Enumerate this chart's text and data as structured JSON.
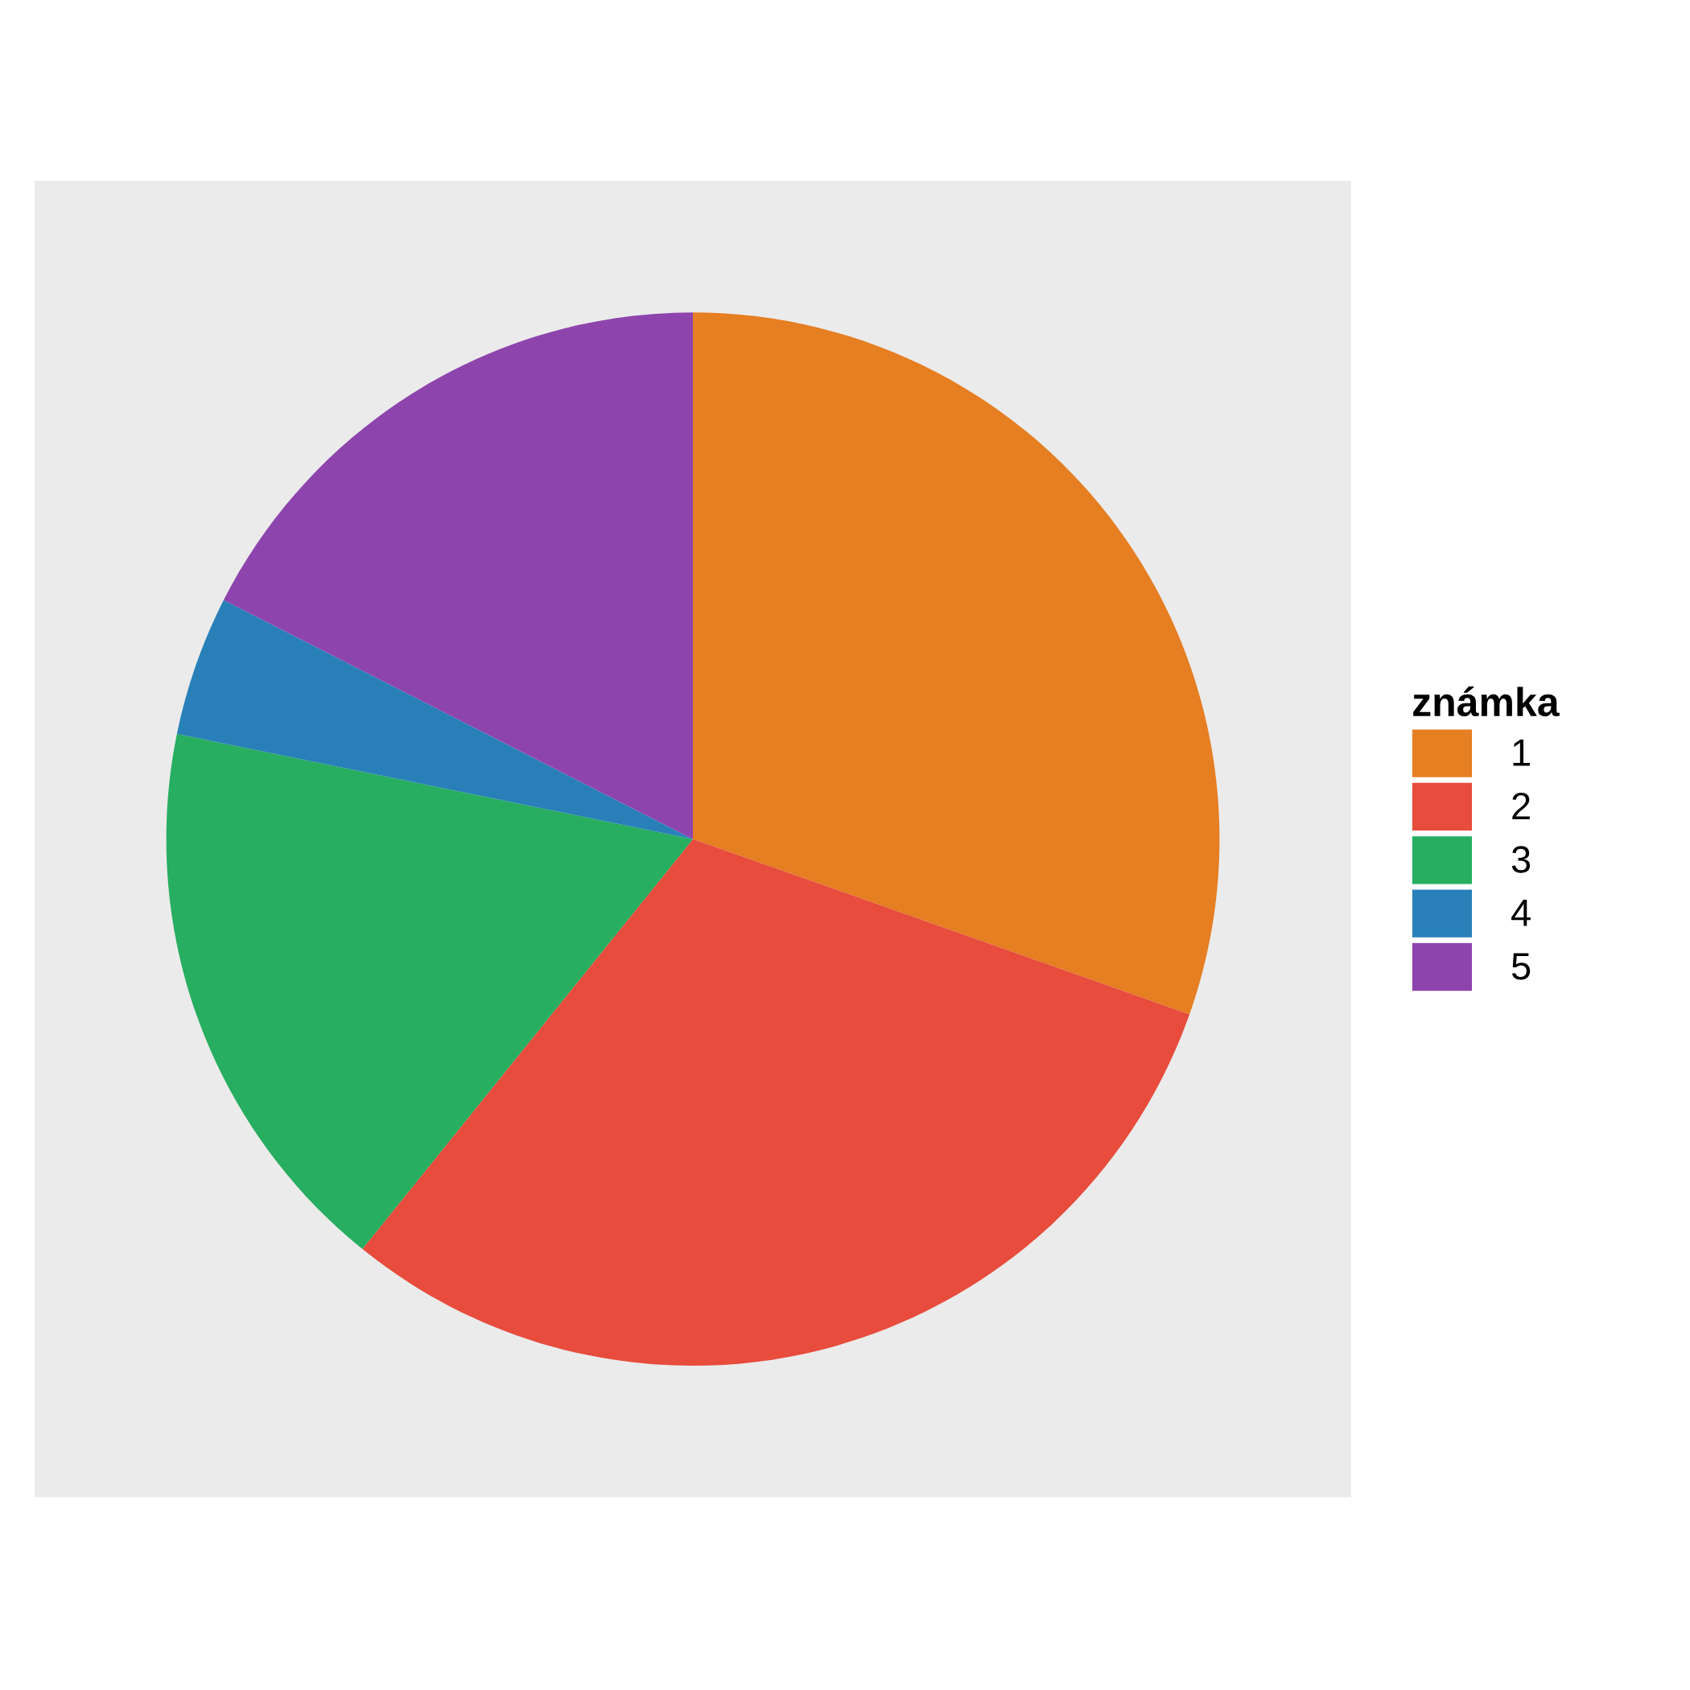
{
  "chart_data": {
    "type": "pie",
    "legend_title": "známka",
    "legend": "right",
    "categories": [
      "1",
      "2",
      "3",
      "4",
      "5"
    ],
    "values": [
      30.4,
      30.4,
      17.4,
      4.3,
      17.5
    ],
    "colors": [
      "#e67e22",
      "#e74c3c",
      "#27ae60",
      "#2980b9",
      "#8e44ad"
    ]
  }
}
